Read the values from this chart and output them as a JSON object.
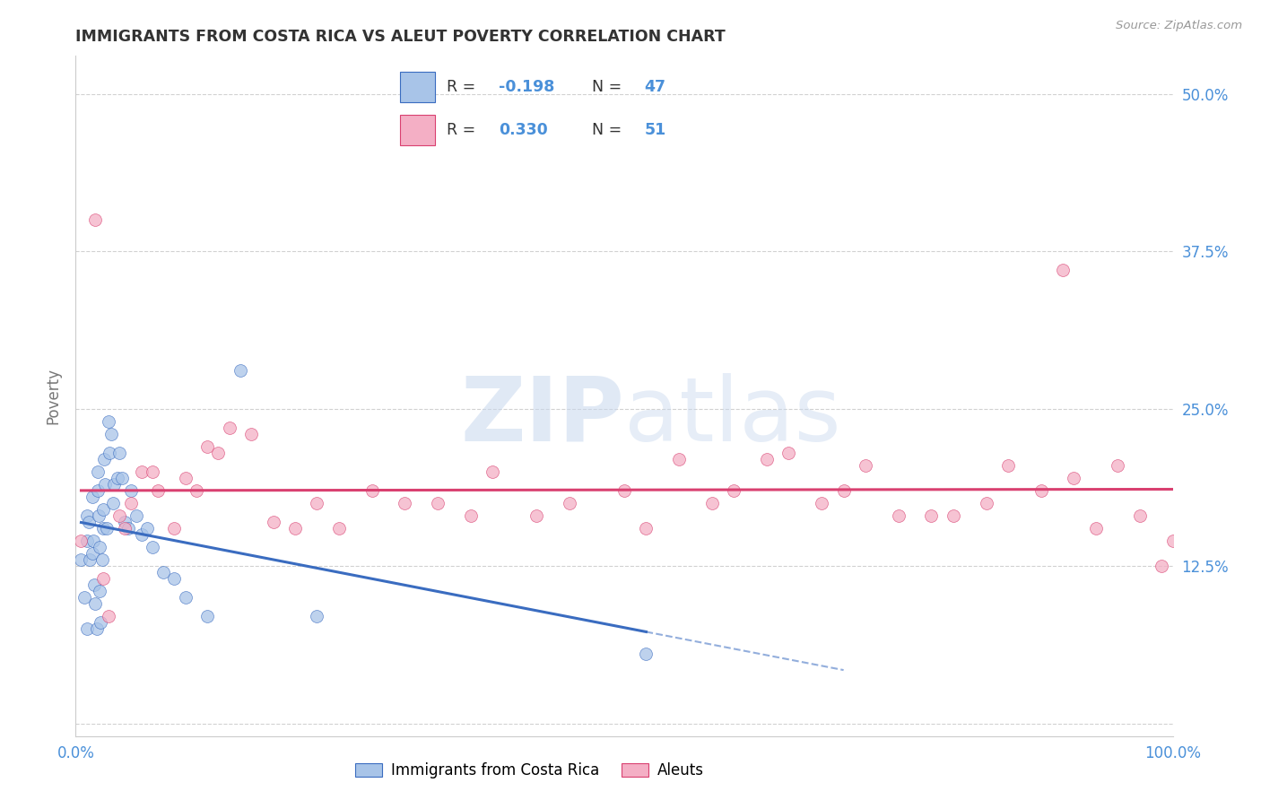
{
  "title": "IMMIGRANTS FROM COSTA RICA VS ALEUT POVERTY CORRELATION CHART",
  "source": "Source: ZipAtlas.com",
  "watermark_zip": "ZIP",
  "watermark_atlas": "atlas",
  "ylabel": "Poverty",
  "ytick_positions": [
    0.0,
    0.125,
    0.25,
    0.375,
    0.5
  ],
  "ytick_labels": [
    "",
    "12.5%",
    "25.0%",
    "37.5%",
    "50.0%"
  ],
  "xlim": [
    0.0,
    1.0
  ],
  "ylim": [
    -0.01,
    0.53
  ],
  "legend_r1_label": "R = ",
  "legend_r1_val": "-0.198",
  "legend_n1_label": "N = ",
  "legend_n1_val": "47",
  "legend_r2_label": "R = ",
  "legend_r2_val": "0.330",
  "legend_n2_label": "N = ",
  "legend_n2_val": "51",
  "series1_fill": "#a8c4e8",
  "series2_fill": "#f4afc5",
  "trend1_color": "#3a6cc0",
  "trend2_color": "#d94070",
  "series1_label": "Immigrants from Costa Rica",
  "series2_label": "Aleuts",
  "blue_x": [
    0.005,
    0.008,
    0.01,
    0.01,
    0.01,
    0.012,
    0.013,
    0.015,
    0.015,
    0.016,
    0.017,
    0.018,
    0.019,
    0.02,
    0.02,
    0.021,
    0.022,
    0.022,
    0.023,
    0.024,
    0.025,
    0.025,
    0.026,
    0.027,
    0.028,
    0.03,
    0.031,
    0.032,
    0.034,
    0.035,
    0.038,
    0.04,
    0.042,
    0.045,
    0.048,
    0.05,
    0.055,
    0.06,
    0.065,
    0.07,
    0.08,
    0.09,
    0.1,
    0.12,
    0.15,
    0.22,
    0.52
  ],
  "blue_y": [
    0.13,
    0.1,
    0.165,
    0.145,
    0.075,
    0.16,
    0.13,
    0.18,
    0.135,
    0.145,
    0.11,
    0.095,
    0.075,
    0.2,
    0.185,
    0.165,
    0.14,
    0.105,
    0.08,
    0.13,
    0.155,
    0.17,
    0.21,
    0.19,
    0.155,
    0.24,
    0.215,
    0.23,
    0.175,
    0.19,
    0.195,
    0.215,
    0.195,
    0.16,
    0.155,
    0.185,
    0.165,
    0.15,
    0.155,
    0.14,
    0.12,
    0.115,
    0.1,
    0.085,
    0.28,
    0.085,
    0.055
  ],
  "pink_x": [
    0.005,
    0.018,
    0.025,
    0.03,
    0.04,
    0.045,
    0.05,
    0.06,
    0.07,
    0.075,
    0.09,
    0.1,
    0.11,
    0.12,
    0.13,
    0.14,
    0.16,
    0.18,
    0.2,
    0.22,
    0.24,
    0.27,
    0.3,
    0.33,
    0.36,
    0.38,
    0.42,
    0.45,
    0.5,
    0.52,
    0.55,
    0.58,
    0.6,
    0.63,
    0.65,
    0.68,
    0.7,
    0.72,
    0.75,
    0.78,
    0.8,
    0.83,
    0.85,
    0.88,
    0.9,
    0.91,
    0.93,
    0.95,
    0.97,
    0.99,
    1.0
  ],
  "pink_y": [
    0.145,
    0.4,
    0.115,
    0.085,
    0.165,
    0.155,
    0.175,
    0.2,
    0.2,
    0.185,
    0.155,
    0.195,
    0.185,
    0.22,
    0.215,
    0.235,
    0.23,
    0.16,
    0.155,
    0.175,
    0.155,
    0.185,
    0.175,
    0.175,
    0.165,
    0.2,
    0.165,
    0.175,
    0.185,
    0.155,
    0.21,
    0.175,
    0.185,
    0.21,
    0.215,
    0.175,
    0.185,
    0.205,
    0.165,
    0.165,
    0.165,
    0.175,
    0.205,
    0.185,
    0.36,
    0.195,
    0.155,
    0.205,
    0.165,
    0.125,
    0.145
  ],
  "background_color": "#ffffff",
  "grid_color": "#cccccc",
  "title_color": "#333333",
  "axis_label_color": "#4a90d9",
  "ylabel_color": "#777777",
  "legend_text_color": "#333333",
  "legend_rval_color": "#4a90d9",
  "legend_nval_color": "#4a90d9"
}
